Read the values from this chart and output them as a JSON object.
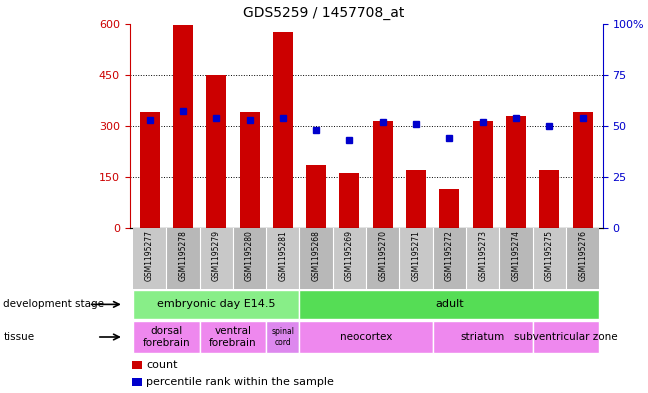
{
  "title": "GDS5259 / 1457708_at",
  "samples": [
    "GSM1195277",
    "GSM1195278",
    "GSM1195279",
    "GSM1195280",
    "GSM1195281",
    "GSM1195268",
    "GSM1195269",
    "GSM1195270",
    "GSM1195271",
    "GSM1195272",
    "GSM1195273",
    "GSM1195274",
    "GSM1195275",
    "GSM1195276"
  ],
  "counts": [
    340,
    595,
    450,
    340,
    575,
    185,
    160,
    315,
    170,
    115,
    315,
    330,
    170,
    340
  ],
  "percentiles": [
    53,
    57,
    54,
    53,
    54,
    48,
    43,
    52,
    51,
    44,
    52,
    54,
    50,
    54
  ],
  "ylim_left": [
    0,
    600
  ],
  "ylim_right": [
    0,
    100
  ],
  "yticks_left": [
    0,
    150,
    300,
    450,
    600
  ],
  "yticks_right": [
    0,
    25,
    50,
    75,
    100
  ],
  "bar_color": "#cc0000",
  "dot_color": "#0000cc",
  "bg_color": "#ffffff",
  "dev_stage_groups": [
    {
      "label": "embryonic day E14.5",
      "start": 0,
      "end": 4,
      "color": "#88ee88"
    },
    {
      "label": "adult",
      "start": 5,
      "end": 13,
      "color": "#55dd55"
    }
  ],
  "tissue_groups": [
    {
      "label": "dorsal\nforebrain",
      "start": 0,
      "end": 1,
      "color": "#ee88ee"
    },
    {
      "label": "ventral\nforebrain",
      "start": 2,
      "end": 3,
      "color": "#ee88ee"
    },
    {
      "label": "spinal\ncord",
      "start": 4,
      "end": 4,
      "color": "#dd88ee"
    },
    {
      "label": "neocortex",
      "start": 5,
      "end": 8,
      "color": "#ee88ee"
    },
    {
      "label": "striatum",
      "start": 9,
      "end": 11,
      "color": "#ee88ee"
    },
    {
      "label": "subventricular zone",
      "start": 12,
      "end": 13,
      "color": "#ee88ee"
    }
  ],
  "xticklabel_bg": "#c8c8c8"
}
